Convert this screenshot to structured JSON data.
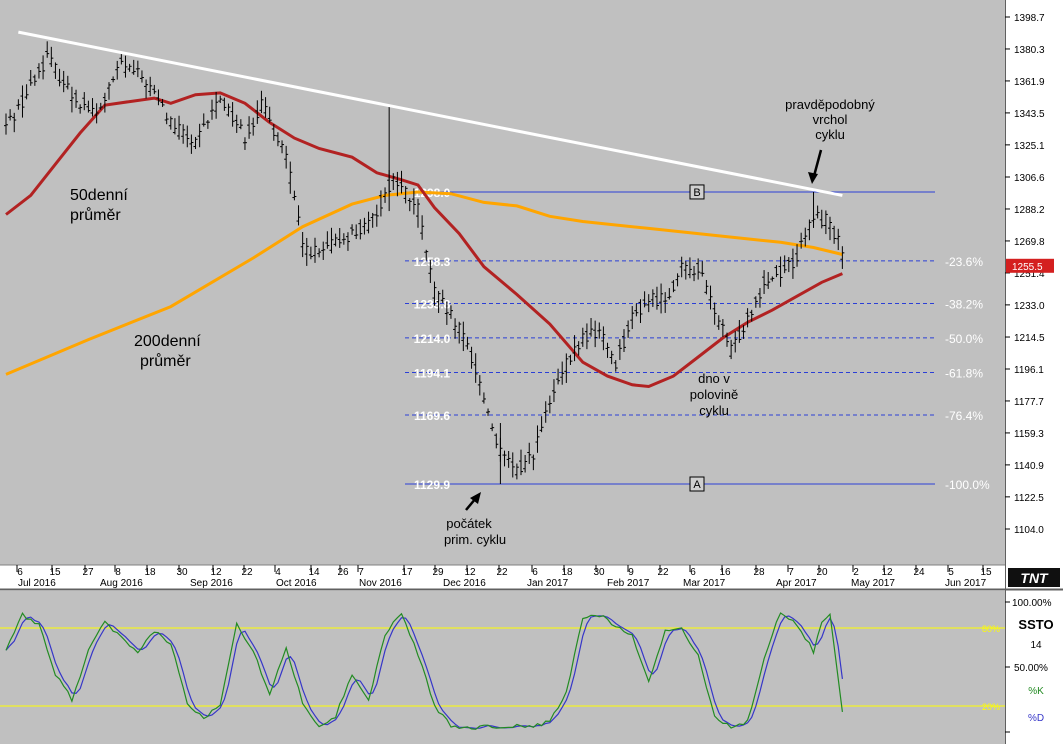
{
  "colors": {
    "panel_bg": "#c0c0c0",
    "axis_bg": "#ffffff",
    "price_bar": "#000000",
    "ma50": "#b22222",
    "ma200": "#ffa500",
    "trendline": "#ffffff",
    "fib_line": "#2b3fd6",
    "stoch_k": "#228b22",
    "stoch_d": "#3636c8",
    "stoch_level": "#ffff00",
    "last_price_tag": "#d42020"
  },
  "chart_data": [
    {
      "type": "ohlc",
      "title": "",
      "y_ticks": [
        "1398.7",
        "1380.3",
        "1361.9",
        "1343.5",
        "1325.1",
        "1306.6",
        "1288.2",
        "1269.8",
        "1251.4",
        "1233.0",
        "1214.5",
        "1196.1",
        "1177.7",
        "1159.3",
        "1140.9",
        "1122.5",
        "1104.0"
      ],
      "ylim": [
        1085.6,
        1404
      ],
      "last_price": "1255.5",
      "x_day_labels": [
        "6",
        "15",
        "27",
        "8",
        "18",
        "30",
        "12",
        "22",
        "4",
        "14",
        "26",
        "7",
        "17",
        "29",
        "12",
        "22",
        "6",
        "18",
        "30",
        "9",
        "22",
        "6",
        "16",
        "28",
        "7",
        "20",
        "2",
        "12",
        "24",
        "5",
        "15"
      ],
      "x_month_labels": [
        "Jul 2016",
        "Aug 2016",
        "Sep 2016",
        "Oct 2016",
        "Nov 2016",
        "Dec 2016",
        "Jan 2017",
        "Feb 2017",
        "Mar 2017",
        "Apr 2017",
        "May 2017",
        "Jun 2017"
      ],
      "price_anchors": [
        {
          "t": 0,
          "p": 1336
        },
        {
          "t": 4,
          "p": 1350
        },
        {
          "t": 10,
          "p": 1376
        },
        {
          "t": 16,
          "p": 1354
        },
        {
          "t": 22,
          "p": 1342
        },
        {
          "t": 28,
          "p": 1372
        },
        {
          "t": 34,
          "p": 1362
        },
        {
          "t": 40,
          "p": 1338
        },
        {
          "t": 46,
          "p": 1325
        },
        {
          "t": 52,
          "p": 1353
        },
        {
          "t": 58,
          "p": 1330
        },
        {
          "t": 62,
          "p": 1348
        },
        {
          "t": 68,
          "p": 1320
        },
        {
          "t": 72,
          "p": 1267
        },
        {
          "t": 76,
          "p": 1262
        },
        {
          "t": 82,
          "p": 1272
        },
        {
          "t": 88,
          "p": 1278
        },
        {
          "t": 94,
          "p": 1306
        },
        {
          "t": 100,
          "p": 1288
        },
        {
          "t": 104,
          "p": 1240
        },
        {
          "t": 108,
          "p": 1226
        },
        {
          "t": 112,
          "p": 1210
        },
        {
          "t": 116,
          "p": 1180
        },
        {
          "t": 120,
          "p": 1147
        },
        {
          "t": 124,
          "p": 1137
        },
        {
          "t": 128,
          "p": 1148
        },
        {
          "t": 132,
          "p": 1176
        },
        {
          "t": 136,
          "p": 1198
        },
        {
          "t": 140,
          "p": 1214
        },
        {
          "t": 144,
          "p": 1218
        },
        {
          "t": 148,
          "p": 1200
        },
        {
          "t": 152,
          "p": 1225
        },
        {
          "t": 156,
          "p": 1236
        },
        {
          "t": 160,
          "p": 1237
        },
        {
          "t": 164,
          "p": 1253
        },
        {
          "t": 168,
          "p": 1254
        },
        {
          "t": 172,
          "p": 1230
        },
        {
          "t": 176,
          "p": 1206
        },
        {
          "t": 180,
          "p": 1226
        },
        {
          "t": 184,
          "p": 1246
        },
        {
          "t": 188,
          "p": 1252
        },
        {
          "t": 192,
          "p": 1260
        },
        {
          "t": 196,
          "p": 1284
        },
        {
          "t": 200,
          "p": 1281
        },
        {
          "t": 203,
          "p": 1263
        }
      ],
      "bar_count": 204,
      "ma50_points": [
        [
          0,
          1285
        ],
        [
          6,
          1296
        ],
        [
          12,
          1314
        ],
        [
          18,
          1332
        ],
        [
          24,
          1348
        ],
        [
          30,
          1350
        ],
        [
          36,
          1352
        ],
        [
          40,
          1349
        ],
        [
          46,
          1354
        ],
        [
          52,
          1355
        ],
        [
          58,
          1349
        ],
        [
          64,
          1338
        ],
        [
          70,
          1329
        ],
        [
          76,
          1323
        ],
        [
          84,
          1318
        ],
        [
          90,
          1309
        ],
        [
          96,
          1305
        ],
        [
          100,
          1302
        ],
        [
          104,
          1289
        ],
        [
          110,
          1274
        ],
        [
          116,
          1255
        ],
        [
          124,
          1239
        ],
        [
          132,
          1222
        ],
        [
          140,
          1200
        ],
        [
          146,
          1192
        ],
        [
          152,
          1187
        ],
        [
          156,
          1186
        ],
        [
          162,
          1192
        ],
        [
          168,
          1203
        ],
        [
          174,
          1214
        ],
        [
          180,
          1223
        ],
        [
          186,
          1230
        ],
        [
          192,
          1238
        ],
        [
          198,
          1246
        ],
        [
          203,
          1251
        ]
      ],
      "ma200_points": [
        [
          0,
          1193
        ],
        [
          20,
          1213
        ],
        [
          40,
          1232
        ],
        [
          60,
          1260
        ],
        [
          72,
          1278
        ],
        [
          84,
          1291
        ],
        [
          92,
          1296
        ],
        [
          100,
          1298
        ],
        [
          108,
          1297
        ],
        [
          116,
          1292
        ],
        [
          124,
          1290
        ],
        [
          132,
          1284
        ],
        [
          140,
          1281
        ],
        [
          148,
          1279
        ],
        [
          156,
          1277
        ],
        [
          164,
          1275
        ],
        [
          172,
          1273
        ],
        [
          180,
          1271
        ],
        [
          188,
          1269
        ],
        [
          196,
          1266
        ],
        [
          203,
          1262
        ]
      ],
      "trendline": {
        "start": [
          3,
          1390
        ],
        "end": [
          203,
          1296
        ]
      },
      "fib_levels": [
        {
          "value": 1298.0,
          "label": "1298.0",
          "right_label": "",
          "style": "solid",
          "marker": "B"
        },
        {
          "value": 1258.3,
          "label": "1258.3",
          "right_label": "-23.6%",
          "style": "dashed"
        },
        {
          "value": 1233.8,
          "label": "1233.8",
          "right_label": "-38.2%",
          "style": "dashed"
        },
        {
          "value": 1214.0,
          "label": "1214.0",
          "right_label": "-50.0%",
          "style": "dashed"
        },
        {
          "value": 1194.1,
          "label": "1194.1",
          "right_label": "-61.8%",
          "style": "dashed"
        },
        {
          "value": 1169.6,
          "label": "1169.6",
          "right_label": "-76.4%",
          "style": "dashed"
        },
        {
          "value": 1129.9,
          "label": "1129.9",
          "right_label": "-100.0%",
          "style": "solid",
          "marker": "A"
        }
      ],
      "annotations": {
        "ma50_label": [
          "50denní",
          "průměr"
        ],
        "ma200_label": [
          "200denní",
          "průměr"
        ],
        "top_label": [
          "pravděpodobný",
          "vrchol",
          "cyklu"
        ],
        "mid_label": [
          "dno v",
          "polovině",
          "cyklu"
        ],
        "start_label": [
          "počátek",
          "prim. cyklu"
        ]
      }
    },
    {
      "type": "line",
      "title": "SSTO",
      "period": "14",
      "y_ticks": [
        "100.00%",
        "50.00%"
      ],
      "levels": [
        {
          "value": 80,
          "label": "80%"
        },
        {
          "value": 20,
          "label": "20%"
        }
      ],
      "series": [
        {
          "name": "%K"
        },
        {
          "name": "%D"
        }
      ],
      "k_points": [
        [
          0,
          62
        ],
        [
          4,
          90
        ],
        [
          8,
          82
        ],
        [
          12,
          45
        ],
        [
          16,
          25
        ],
        [
          20,
          62
        ],
        [
          24,
          85
        ],
        [
          28,
          72
        ],
        [
          32,
          60
        ],
        [
          36,
          78
        ],
        [
          40,
          68
        ],
        [
          44,
          22
        ],
        [
          48,
          10
        ],
        [
          52,
          22
        ],
        [
          56,
          84
        ],
        [
          60,
          62
        ],
        [
          64,
          30
        ],
        [
          68,
          65
        ],
        [
          72,
          22
        ],
        [
          76,
          5
        ],
        [
          80,
          12
        ],
        [
          84,
          45
        ],
        [
          88,
          25
        ],
        [
          92,
          75
        ],
        [
          96,
          92
        ],
        [
          100,
          60
        ],
        [
          104,
          20
        ],
        [
          108,
          5
        ],
        [
          112,
          3
        ],
        [
          116,
          4
        ],
        [
          120,
          4
        ],
        [
          124,
          5
        ],
        [
          128,
          4
        ],
        [
          132,
          8
        ],
        [
          136,
          30
        ],
        [
          140,
          88
        ],
        [
          144,
          90
        ],
        [
          148,
          82
        ],
        [
          152,
          75
        ],
        [
          156,
          38
        ],
        [
          160,
          78
        ],
        [
          164,
          80
        ],
        [
          168,
          58
        ],
        [
          172,
          12
        ],
        [
          176,
          4
        ],
        [
          180,
          8
        ],
        [
          184,
          55
        ],
        [
          188,
          93
        ],
        [
          192,
          83
        ],
        [
          196,
          62
        ],
        [
          198,
          84
        ],
        [
          200,
          90
        ],
        [
          203,
          16
        ]
      ]
    }
  ]
}
